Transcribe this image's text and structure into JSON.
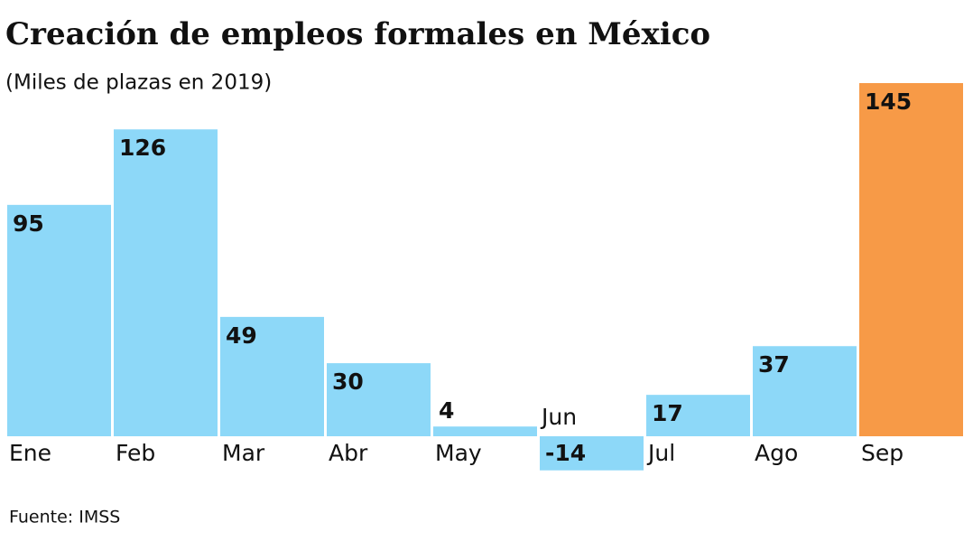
{
  "chart_data": {
    "type": "bar",
    "title": "Creación de empleos formales en México",
    "subtitle": "(Miles de plazas en 2019)",
    "source": "Fuente: IMSS",
    "categories": [
      "Ene",
      "Feb",
      "Mar",
      "Abr",
      "May",
      "Jun",
      "Jul",
      "Ago",
      "Sep"
    ],
    "values": [
      95,
      126,
      49,
      30,
      4,
      -14,
      17,
      37,
      145
    ],
    "colors": [
      "#8dd8f8",
      "#8dd8f8",
      "#8dd8f8",
      "#8dd8f8",
      "#8dd8f8",
      "#8dd8f8",
      "#8dd8f8",
      "#8dd8f8",
      "#f79a47"
    ]
  }
}
